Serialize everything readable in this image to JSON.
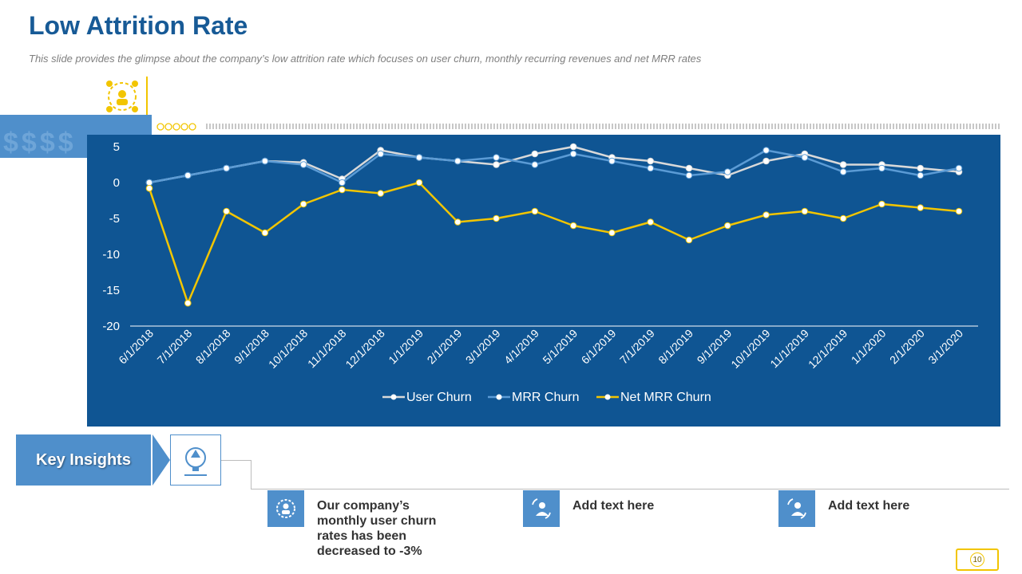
{
  "header": {
    "title": "Low Attrition Rate",
    "subtitle": "This slide provides the glimpse about the company’s low attrition rate which focuses on user churn, monthly recurring revenues and net MRR rates"
  },
  "decor": {
    "dollar_text": "$$$$"
  },
  "colors": {
    "accent": "#175a96",
    "chart_bg": "#0f5593",
    "light_blue": "#4f8fcb",
    "yellow": "#f2c500"
  },
  "chart_data": {
    "type": "line",
    "categories": [
      "6/1/2018",
      "7/1/2018",
      "8/1/2018",
      "9/1/2018",
      "10/1/2018",
      "11/1/2018",
      "12/1/2018",
      "1/1/2019",
      "2/1/2019",
      "3/1/2019",
      "4/1/2019",
      "5/1/2019",
      "6/1/2019",
      "7/1/2019",
      "8/1/2019",
      "9/1/2019",
      "10/1/2019",
      "11/1/2019",
      "12/1/2019",
      "1/1/2020",
      "2/1/2020",
      "3/1/2020"
    ],
    "series": [
      {
        "name": "User Churn",
        "color": "#d9d9d9",
        "values": [
          0,
          1,
          2,
          3,
          2.8,
          0.5,
          4.5,
          3.5,
          3,
          2.5,
          4,
          5,
          3.5,
          3,
          2,
          1,
          3,
          4,
          2.5,
          2.5,
          2,
          1.5
        ]
      },
      {
        "name": "MRR Churn",
        "color": "#5b9bd5",
        "values": [
          0,
          1,
          2,
          3,
          2.5,
          0,
          4,
          3.5,
          3,
          3.5,
          2.5,
          4,
          3,
          2,
          1,
          1.5,
          4.5,
          3.5,
          1.5,
          2,
          1,
          2
        ]
      },
      {
        "name": "Net MRR Churn",
        "color": "#f2c500",
        "values": [
          -0.8,
          -16.8,
          -4,
          -7,
          -3,
          -1,
          -1.5,
          0,
          -5.5,
          -5,
          -4,
          -6,
          -7,
          -5.5,
          -8,
          -6,
          -4.5,
          -4,
          -5,
          -3,
          -3.5,
          -4
        ]
      }
    ],
    "ylim": [
      -20,
      5
    ],
    "yticks": [
      5,
      0,
      -5,
      -10,
      -15,
      -20
    ],
    "title": "",
    "xlabel": "",
    "ylabel": "",
    "legend": "bottom"
  },
  "key_insights": {
    "label": "Key Insights",
    "items": [
      {
        "text": "Our company’s monthly user churn rates has been decreased to -3%"
      },
      {
        "text": "Add text here"
      },
      {
        "text": "Add text here"
      }
    ]
  },
  "page_number": "10"
}
